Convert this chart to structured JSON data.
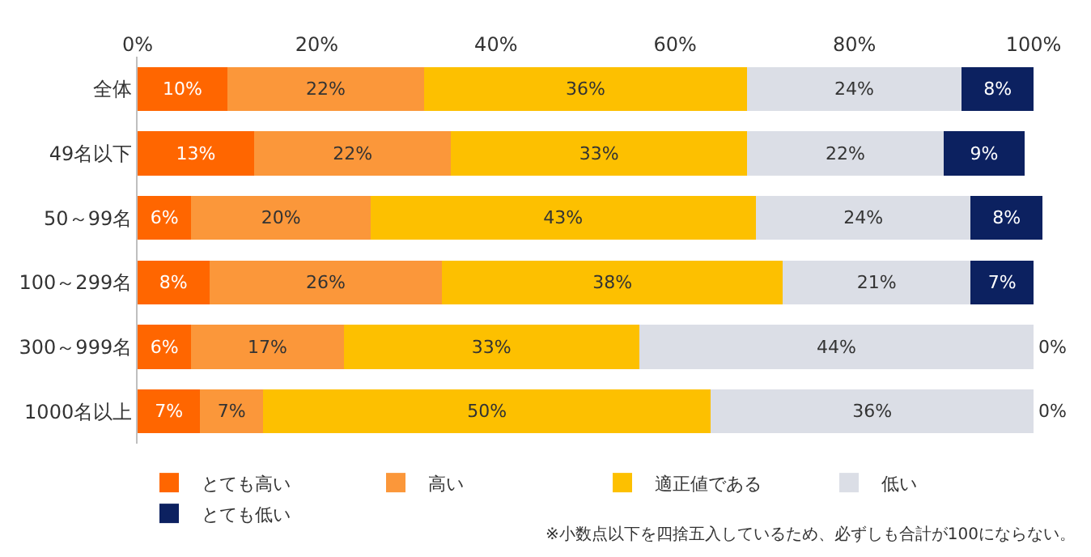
{
  "chart_data": {
    "type": "bar",
    "orientation": "horizontal",
    "stacked": true,
    "categories": [
      "全体",
      "49名以下",
      "50～99名",
      "100～299名",
      "300～999名",
      "1000名以上"
    ],
    "series": [
      {
        "name": "とても高い",
        "color": "#ff6600",
        "values": [
          10,
          13,
          6,
          8,
          6,
          7
        ],
        "value_labels": [
          "10%",
          "13%",
          "6%",
          "8%",
          "6%",
          "7%"
        ]
      },
      {
        "name": "高い",
        "color": "#fb973a",
        "values": [
          22,
          22,
          20,
          26,
          17,
          7
        ],
        "value_labels": [
          "22%",
          "22%",
          "20%",
          "26%",
          "17%",
          "7%"
        ]
      },
      {
        "name": "適正値である",
        "color": "#fdc000",
        "values": [
          36,
          33,
          43,
          38,
          33,
          50
        ],
        "value_labels": [
          "36%",
          "33%",
          "43%",
          "38%",
          "33%",
          "50%"
        ]
      },
      {
        "name": "低い",
        "color": "#dbdee6",
        "values": [
          24,
          22,
          24,
          21,
          44,
          36
        ],
        "value_labels": [
          "24%",
          "22%",
          "24%",
          "21%",
          "44%",
          "36%"
        ]
      },
      {
        "name": "とても低い",
        "color": "#0c2160",
        "values": [
          8,
          9,
          8,
          7,
          0,
          0
        ],
        "value_labels": [
          "8%",
          "9%",
          "8%",
          "7%",
          "0%",
          "0%"
        ]
      }
    ],
    "xlim": [
      0,
      101
    ],
    "xticks": [
      {
        "value": 0,
        "label": "0%"
      },
      {
        "value": 20,
        "label": "20%"
      },
      {
        "value": 40,
        "label": "40%"
      },
      {
        "value": 60,
        "label": "60%"
      },
      {
        "value": 80,
        "label": "80%"
      },
      {
        "value": 100,
        "label": "100%"
      }
    ],
    "legend": "bottom",
    "annotations": [
      "※小数点以下を四捨五入しているため、必ずしも合計が100にならない。"
    ]
  }
}
